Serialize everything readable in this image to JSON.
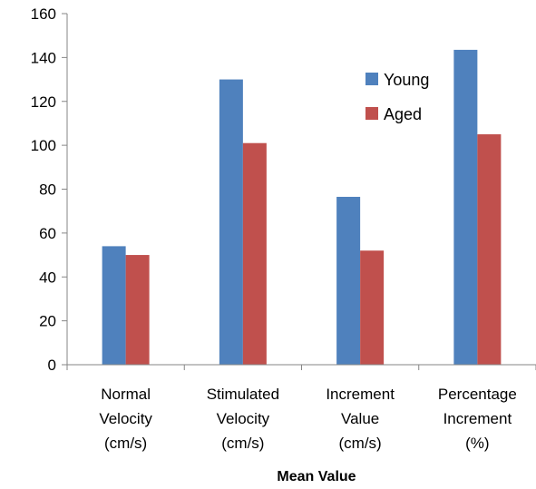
{
  "chart_data": {
    "type": "bar",
    "categories": [
      [
        "Normal",
        "Velocity",
        "(cm/s)"
      ],
      [
        "Stimulated",
        "Velocity",
        "(cm/s)"
      ],
      [
        "Increment",
        "Value",
        "(cm/s)"
      ],
      [
        "Percentage",
        "Increment",
        "(%)"
      ]
    ],
    "series": [
      {
        "name": "Young",
        "color": "#4F81BD",
        "values": [
          54,
          130,
          76.5,
          143.5
        ]
      },
      {
        "name": "Aged",
        "color": "#C0504D",
        "values": [
          50,
          101,
          52,
          105
        ]
      }
    ],
    "title": "",
    "xlabel": "Mean Value",
    "ylabel": "",
    "ylim": [
      0,
      160
    ],
    "yticks": [
      "0",
      "20",
      "40",
      "60",
      "80",
      "100",
      "120",
      "140",
      "160"
    ],
    "grid": false,
    "legend_position": "top-right"
  }
}
